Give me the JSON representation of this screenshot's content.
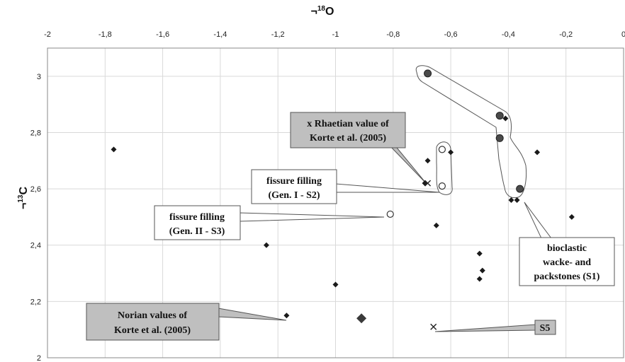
{
  "chart_data": {
    "type": "scatter",
    "xlabel": {
      "prefix": "¬",
      "sup": "18",
      "main": "O"
    },
    "ylabel": {
      "prefix": "¬",
      "sup": "13",
      "main": "C"
    },
    "xlim": [
      -2,
      0
    ],
    "ylim": [
      2,
      3.1
    ],
    "x_ticks": [
      -2,
      -1.8,
      -1.6,
      -1.4,
      -1.2,
      -1,
      -0.8,
      -0.6,
      -0.4,
      -0.2,
      0
    ],
    "x_tick_labels": [
      "-2",
      "-1,8",
      "-1,6",
      "-1,4",
      "-1,2",
      "-1",
      "-0,8",
      "-0,6",
      "-0,4",
      "-0,2",
      "0"
    ],
    "y_ticks": [
      2,
      2.2,
      2.4,
      2.6,
      2.8,
      3
    ],
    "y_tick_labels": [
      "2",
      "2,2",
      "2,4",
      "2,6",
      "2,8",
      "3"
    ],
    "grid": true,
    "series": [
      {
        "marker": "small-diamond",
        "points": [
          [
            -1.77,
            2.74
          ],
          [
            -1.24,
            2.4
          ],
          [
            -1.17,
            2.15
          ],
          [
            -1.0,
            2.26
          ],
          [
            -0.69,
            2.62
          ],
          [
            -0.68,
            2.7
          ],
          [
            -0.65,
            2.47
          ],
          [
            -0.6,
            2.73
          ],
          [
            -0.5,
            2.37
          ],
          [
            -0.49,
            2.31
          ],
          [
            -0.5,
            2.28
          ],
          [
            -0.41,
            2.85
          ],
          [
            -0.39,
            2.56
          ],
          [
            -0.37,
            2.56
          ],
          [
            -0.3,
            2.73
          ],
          [
            -0.18,
            2.5
          ]
        ]
      },
      {
        "marker": "large-diamond",
        "points": [
          [
            -0.91,
            2.14
          ]
        ]
      },
      {
        "marker": "filled-circle",
        "points": [
          [
            -0.68,
            3.01
          ],
          [
            -0.43,
            2.86
          ],
          [
            -0.43,
            2.78
          ],
          [
            -0.36,
            2.6
          ]
        ]
      },
      {
        "marker": "open-circle",
        "points": [
          [
            -0.63,
            2.74
          ],
          [
            -0.63,
            2.61
          ],
          [
            -0.81,
            2.51
          ]
        ]
      },
      {
        "marker": "cross",
        "points": [
          [
            -0.68,
            2.62
          ],
          [
            -0.66,
            2.11
          ]
        ]
      }
    ],
    "annotations": [
      {
        "lines": [
          "x  Rhaetian value of",
          "Korte et al. (2005)"
        ],
        "style": "gray"
      },
      {
        "lines": [
          "fissure filling",
          "(Gen. I - S2)"
        ],
        "style": "white"
      },
      {
        "lines": [
          "fissure filling",
          "(Gen. II - S3)"
        ],
        "style": "white"
      },
      {
        "lines": [
          "bioclastic",
          "wacke- and",
          "packstones (S1)"
        ],
        "style": "white"
      },
      {
        "lines": [
          "Norian values of",
          "Korte et al. (2005)"
        ],
        "style": "gray"
      },
      {
        "lines": [
          "S5"
        ],
        "style": "gray"
      }
    ]
  }
}
